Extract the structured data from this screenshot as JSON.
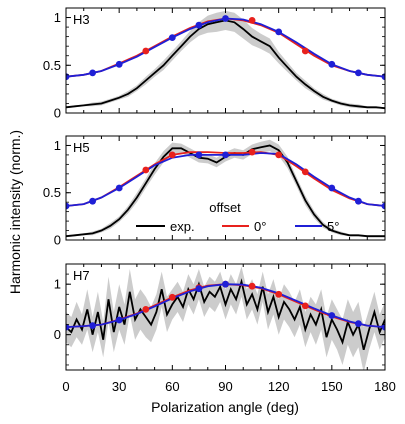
{
  "chart_data": {
    "type": "line",
    "xlabel": "Polarization angle (deg)",
    "ylabel": "Harmonic intensity (norm.)",
    "xlim": [
      0,
      180
    ],
    "xticks": [
      0,
      30,
      60,
      90,
      120,
      150,
      180
    ],
    "x_tick_labels": [
      "0",
      "30",
      "60",
      "90",
      "120",
      "150",
      "180"
    ],
    "legend": {
      "title": "offset",
      "placement": "inside-middle-panel",
      "entries": [
        {
          "label": "exp.",
          "color": "#000000"
        },
        {
          "label": "0°",
          "color": "#e8211d"
        },
        {
          "label": "5°",
          "color": "#1f1fd6"
        }
      ]
    },
    "panels": [
      {
        "label": "H3",
        "ylim": [
          0,
          1.1
        ],
        "yticks": [
          0,
          0.5,
          1
        ],
        "y_tick_labels": [
          "0",
          "0.5",
          "1"
        ],
        "series": [
          {
            "name": "exp.",
            "color": "#000000",
            "band_color": "#cccccc",
            "x": [
              0,
              5,
              10,
              15,
              20,
              25,
              30,
              35,
              40,
              45,
              50,
              55,
              60,
              65,
              70,
              75,
              80,
              85,
              90,
              95,
              100,
              105,
              110,
              115,
              120,
              125,
              130,
              135,
              140,
              145,
              150,
              155,
              160,
              165,
              170,
              175,
              180
            ],
            "y": [
              0.06,
              0.07,
              0.08,
              0.09,
              0.1,
              0.13,
              0.16,
              0.2,
              0.26,
              0.34,
              0.42,
              0.5,
              0.6,
              0.7,
              0.8,
              0.88,
              0.93,
              0.95,
              0.97,
              0.95,
              0.88,
              0.8,
              0.75,
              0.7,
              0.58,
              0.48,
              0.38,
              0.3,
              0.23,
              0.17,
              0.13,
              0.1,
              0.08,
              0.07,
              0.06,
              0.06,
              0.05
            ],
            "band": [
              0.01,
              0.01,
              0.01,
              0.02,
              0.02,
              0.02,
              0.02,
              0.03,
              0.03,
              0.04,
              0.04,
              0.05,
              0.05,
              0.05,
              0.06,
              0.07,
              0.09,
              0.1,
              0.1,
              0.1,
              0.1,
              0.09,
              0.08,
              0.08,
              0.06,
              0.05,
              0.04,
              0.04,
              0.03,
              0.03,
              0.02,
              0.02,
              0.02,
              0.02,
              0.01,
              0.01,
              0.01
            ]
          },
          {
            "name": "0°",
            "color": "#e8211d",
            "marker_color": "#e8211d",
            "x": [
              0,
              10,
              20,
              30,
              40,
              50,
              60,
              70,
              80,
              90,
              100,
              110,
              120,
              130,
              140,
              150,
              160,
              170,
              180
            ],
            "y": [
              0.38,
              0.4,
              0.44,
              0.52,
              0.6,
              0.7,
              0.8,
              0.89,
              0.96,
              0.99,
              0.97,
              0.92,
              0.84,
              0.72,
              0.6,
              0.5,
              0.44,
              0.4,
              0.38
            ],
            "markers_x": [
              45,
              105,
              135
            ],
            "markers_y": [
              0.65,
              0.97,
              0.65
            ]
          },
          {
            "name": "5°",
            "color": "#1f1fd6",
            "marker_color": "#1f1fd6",
            "x": [
              0,
              10,
              20,
              30,
              40,
              50,
              60,
              70,
              80,
              90,
              100,
              110,
              120,
              130,
              140,
              150,
              160,
              170,
              180
            ],
            "y": [
              0.38,
              0.4,
              0.44,
              0.51,
              0.59,
              0.69,
              0.79,
              0.88,
              0.95,
              0.99,
              0.98,
              0.93,
              0.85,
              0.74,
              0.62,
              0.51,
              0.44,
              0.4,
              0.38
            ],
            "markers_x": [
              0,
              15,
              30,
              60,
              75,
              90,
              120,
              150,
              165,
              180
            ],
            "markers_y": [
              0.38,
              0.42,
              0.51,
              0.79,
              0.92,
              0.99,
              0.85,
              0.51,
              0.42,
              0.38
            ]
          }
        ]
      },
      {
        "label": "H5",
        "ylim": [
          0,
          1.1
        ],
        "yticks": [
          0,
          0.5,
          1
        ],
        "y_tick_labels": [
          "0",
          "0.5",
          "1"
        ],
        "series": [
          {
            "name": "exp.",
            "color": "#000000",
            "band_color": "#cccccc",
            "x": [
              0,
              5,
              10,
              15,
              20,
              25,
              30,
              35,
              40,
              45,
              50,
              55,
              60,
              65,
              70,
              75,
              80,
              85,
              90,
              95,
              100,
              105,
              110,
              115,
              120,
              125,
              130,
              135,
              140,
              145,
              150,
              155,
              160,
              165,
              170,
              175,
              180
            ],
            "y": [
              0.04,
              0.05,
              0.06,
              0.07,
              0.1,
              0.15,
              0.22,
              0.32,
              0.45,
              0.6,
              0.75,
              0.88,
              0.97,
              0.97,
              0.92,
              0.87,
              0.86,
              0.82,
              0.88,
              0.92,
              0.9,
              0.96,
              0.98,
              1.0,
              0.95,
              0.82,
              0.62,
              0.42,
              0.27,
              0.16,
              0.1,
              0.07,
              0.05,
              0.05,
              0.04,
              0.04,
              0.04
            ],
            "band": [
              0.01,
              0.01,
              0.01,
              0.02,
              0.02,
              0.03,
              0.03,
              0.04,
              0.05,
              0.05,
              0.06,
              0.06,
              0.06,
              0.05,
              0.05,
              0.05,
              0.05,
              0.05,
              0.05,
              0.05,
              0.05,
              0.05,
              0.06,
              0.06,
              0.06,
              0.06,
              0.05,
              0.05,
              0.04,
              0.03,
              0.02,
              0.02,
              0.01,
              0.01,
              0.01,
              0.01,
              0.01
            ]
          },
          {
            "name": "0°",
            "color": "#e8211d",
            "marker_color": "#e8211d",
            "x": [
              0,
              10,
              20,
              30,
              40,
              50,
              60,
              70,
              80,
              90,
              100,
              110,
              120,
              130,
              140,
              150,
              160,
              170,
              180
            ],
            "y": [
              0.36,
              0.38,
              0.45,
              0.56,
              0.68,
              0.8,
              0.9,
              0.93,
              0.93,
              0.92,
              0.92,
              0.93,
              0.9,
              0.78,
              0.65,
              0.53,
              0.44,
              0.38,
              0.36
            ],
            "markers_x": [
              45,
              60,
              105,
              120,
              135
            ],
            "markers_y": [
              0.74,
              0.9,
              0.93,
              0.9,
              0.72
            ]
          },
          {
            "name": "5°",
            "color": "#1f1fd6",
            "marker_color": "#1f1fd6",
            "x": [
              0,
              10,
              20,
              30,
              40,
              50,
              60,
              70,
              80,
              90,
              100,
              110,
              120,
              130,
              140,
              150,
              160,
              170,
              180
            ],
            "y": [
              0.36,
              0.38,
              0.45,
              0.55,
              0.67,
              0.79,
              0.87,
              0.9,
              0.9,
              0.9,
              0.9,
              0.92,
              0.91,
              0.8,
              0.67,
              0.55,
              0.45,
              0.38,
              0.36
            ],
            "markers_x": [
              0,
              15,
              30,
              75,
              90,
              150,
              165,
              180
            ],
            "markers_y": [
              0.36,
              0.41,
              0.55,
              0.9,
              0.9,
              0.55,
              0.41,
              0.36
            ]
          }
        ]
      },
      {
        "label": "H7",
        "ylim": [
          -0.7,
          1.4
        ],
        "yticks": [
          0,
          1
        ],
        "y_tick_labels": [
          "0",
          "1"
        ],
        "series": [
          {
            "name": "exp.",
            "color": "#000000",
            "band_color": "#cccccc",
            "x": [
              0,
              3,
              6,
              9,
              12,
              15,
              18,
              21,
              24,
              27,
              30,
              33,
              36,
              39,
              42,
              45,
              48,
              51,
              54,
              57,
              60,
              63,
              66,
              69,
              72,
              75,
              78,
              81,
              84,
              87,
              90,
              93,
              96,
              99,
              102,
              105,
              108,
              111,
              114,
              117,
              120,
              123,
              126,
              129,
              132,
              135,
              138,
              141,
              144,
              147,
              150,
              153,
              156,
              159,
              162,
              165,
              168,
              171,
              174,
              177,
              180
            ],
            "y": [
              0.15,
              0.05,
              0.3,
              0.1,
              0.5,
              0.0,
              0.45,
              -0.1,
              0.7,
              0.05,
              0.55,
              0.2,
              0.85,
              0.3,
              0.5,
              0.35,
              0.2,
              0.45,
              0.9,
              0.4,
              0.6,
              0.75,
              0.55,
              0.9,
              0.7,
              1.0,
              0.65,
              0.85,
              0.75,
              0.95,
              0.6,
              0.9,
              0.7,
              1.05,
              0.6,
              0.8,
              0.5,
              0.95,
              0.45,
              0.75,
              0.35,
              0.65,
              0.5,
              0.3,
              0.55,
              0.1,
              0.4,
              0.2,
              0.5,
              -0.05,
              0.3,
              0.1,
              -0.15,
              0.25,
              0.0,
              0.2,
              -0.3,
              0.1,
              0.45,
              0.05,
              0.3
            ],
            "band": [
              0.3,
              0.3,
              0.35,
              0.3,
              0.4,
              0.35,
              0.4,
              0.35,
              0.45,
              0.4,
              0.45,
              0.4,
              0.45,
              0.4,
              0.4,
              0.4,
              0.35,
              0.35,
              0.35,
              0.35,
              0.3,
              0.3,
              0.3,
              0.3,
              0.3,
              0.3,
              0.3,
              0.3,
              0.3,
              0.3,
              0.3,
              0.3,
              0.3,
              0.3,
              0.3,
              0.3,
              0.3,
              0.3,
              0.35,
              0.35,
              0.35,
              0.35,
              0.35,
              0.35,
              0.35,
              0.35,
              0.35,
              0.4,
              0.4,
              0.4,
              0.4,
              0.4,
              0.45,
              0.45,
              0.45,
              0.45,
              0.45,
              0.4,
              0.4,
              0.35,
              0.35
            ]
          },
          {
            "name": "0°",
            "color": "#e8211d",
            "marker_color": "#e8211d",
            "x": [
              0,
              10,
              20,
              30,
              40,
              50,
              60,
              70,
              80,
              90,
              100,
              110,
              120,
              130,
              140,
              150,
              160,
              170,
              180
            ],
            "y": [
              0.15,
              0.17,
              0.2,
              0.3,
              0.42,
              0.58,
              0.74,
              0.88,
              0.97,
              1.0,
              0.98,
              0.92,
              0.8,
              0.65,
              0.5,
              0.36,
              0.25,
              0.18,
              0.15
            ],
            "markers_x": [
              45,
              60,
              75,
              90,
              105,
              120,
              135
            ],
            "markers_y": [
              0.5,
              0.74,
              0.93,
              1.0,
              0.96,
              0.8,
              0.57
            ]
          },
          {
            "name": "5°",
            "color": "#1f1fd6",
            "marker_color": "#1f1fd6",
            "x": [
              0,
              10,
              20,
              30,
              40,
              50,
              60,
              70,
              80,
              90,
              100,
              110,
              120,
              130,
              140,
              150,
              160,
              170,
              180
            ],
            "y": [
              0.15,
              0.17,
              0.2,
              0.29,
              0.41,
              0.56,
              0.72,
              0.86,
              0.96,
              1.0,
              0.99,
              0.93,
              0.82,
              0.67,
              0.52,
              0.38,
              0.26,
              0.18,
              0.15
            ],
            "markers_x": [
              0,
              15,
              30,
              75,
              90,
              150,
              165,
              180
            ],
            "markers_y": [
              0.15,
              0.18,
              0.29,
              0.91,
              1.0,
              0.38,
              0.22,
              0.15
            ]
          }
        ]
      }
    ]
  }
}
